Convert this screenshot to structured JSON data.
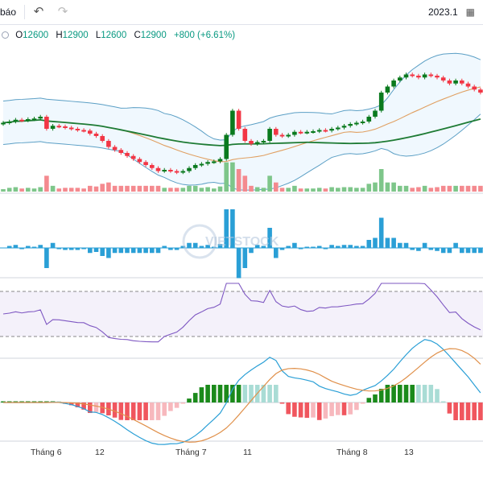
{
  "toolbar": {
    "left_label": "báo",
    "undo_icon": "undo-icon",
    "redo_icon": "redo-icon",
    "date_range": "2023.1"
  },
  "ohlc": {
    "o_label": "O",
    "o_value": "12600",
    "h_label": "H",
    "h_value": "12900",
    "l_label": "L",
    "l_value": "12600",
    "c_label": "C",
    "c_value": "12900",
    "change": "+800 (+6.61%)"
  },
  "watermark": "VIETSTOCK",
  "x_axis": {
    "labels": [
      "Tháng 6",
      "12",
      "Tháng 7",
      "11",
      "Tháng 8",
      "13"
    ]
  },
  "colors": {
    "up": "#089981",
    "up_dark": "#0a7a1e",
    "down": "#f23645",
    "bb": "#5b9fc5",
    "ma_long": "#1e7b34",
    "ma_short": "#e0a062",
    "rsi": "#7e57c2",
    "macd_fast": "#2a9fd6",
    "macd_slow": "#e0904a",
    "vol_up": "#7ec68a",
    "vol_down": "#f48a8f",
    "flow_up": "#2a9fd6"
  },
  "chart_data": {
    "type": "candlestick",
    "close": [
      12400,
      12420,
      12450,
      12440,
      12460,
      12470,
      12500,
      12300,
      12350,
      12340,
      12320,
      12300,
      12280,
      12270,
      12220,
      12180,
      12100,
      12000,
      11950,
      11900,
      11850,
      11800,
      11750,
      11700,
      11650,
      11600,
      11620,
      11600,
      11580,
      11600,
      11650,
      11700,
      11720,
      11750,
      11760,
      11800,
      12200,
      12600,
      12300,
      12100,
      12050,
      12080,
      12100,
      12300,
      12200,
      12180,
      12200,
      12250,
      12240,
      12250,
      12260,
      12280,
      12270,
      12300,
      12320,
      12350,
      12380,
      12400,
      12420,
      12500,
      12600,
      12900,
      13000,
      13100,
      13150,
      13200,
      13180,
      13150,
      13200,
      13180,
      13150,
      13100,
      13050,
      13100,
      13050,
      13000,
      12950,
      12900
    ],
    "volume_up_down": "mixed"
  }
}
